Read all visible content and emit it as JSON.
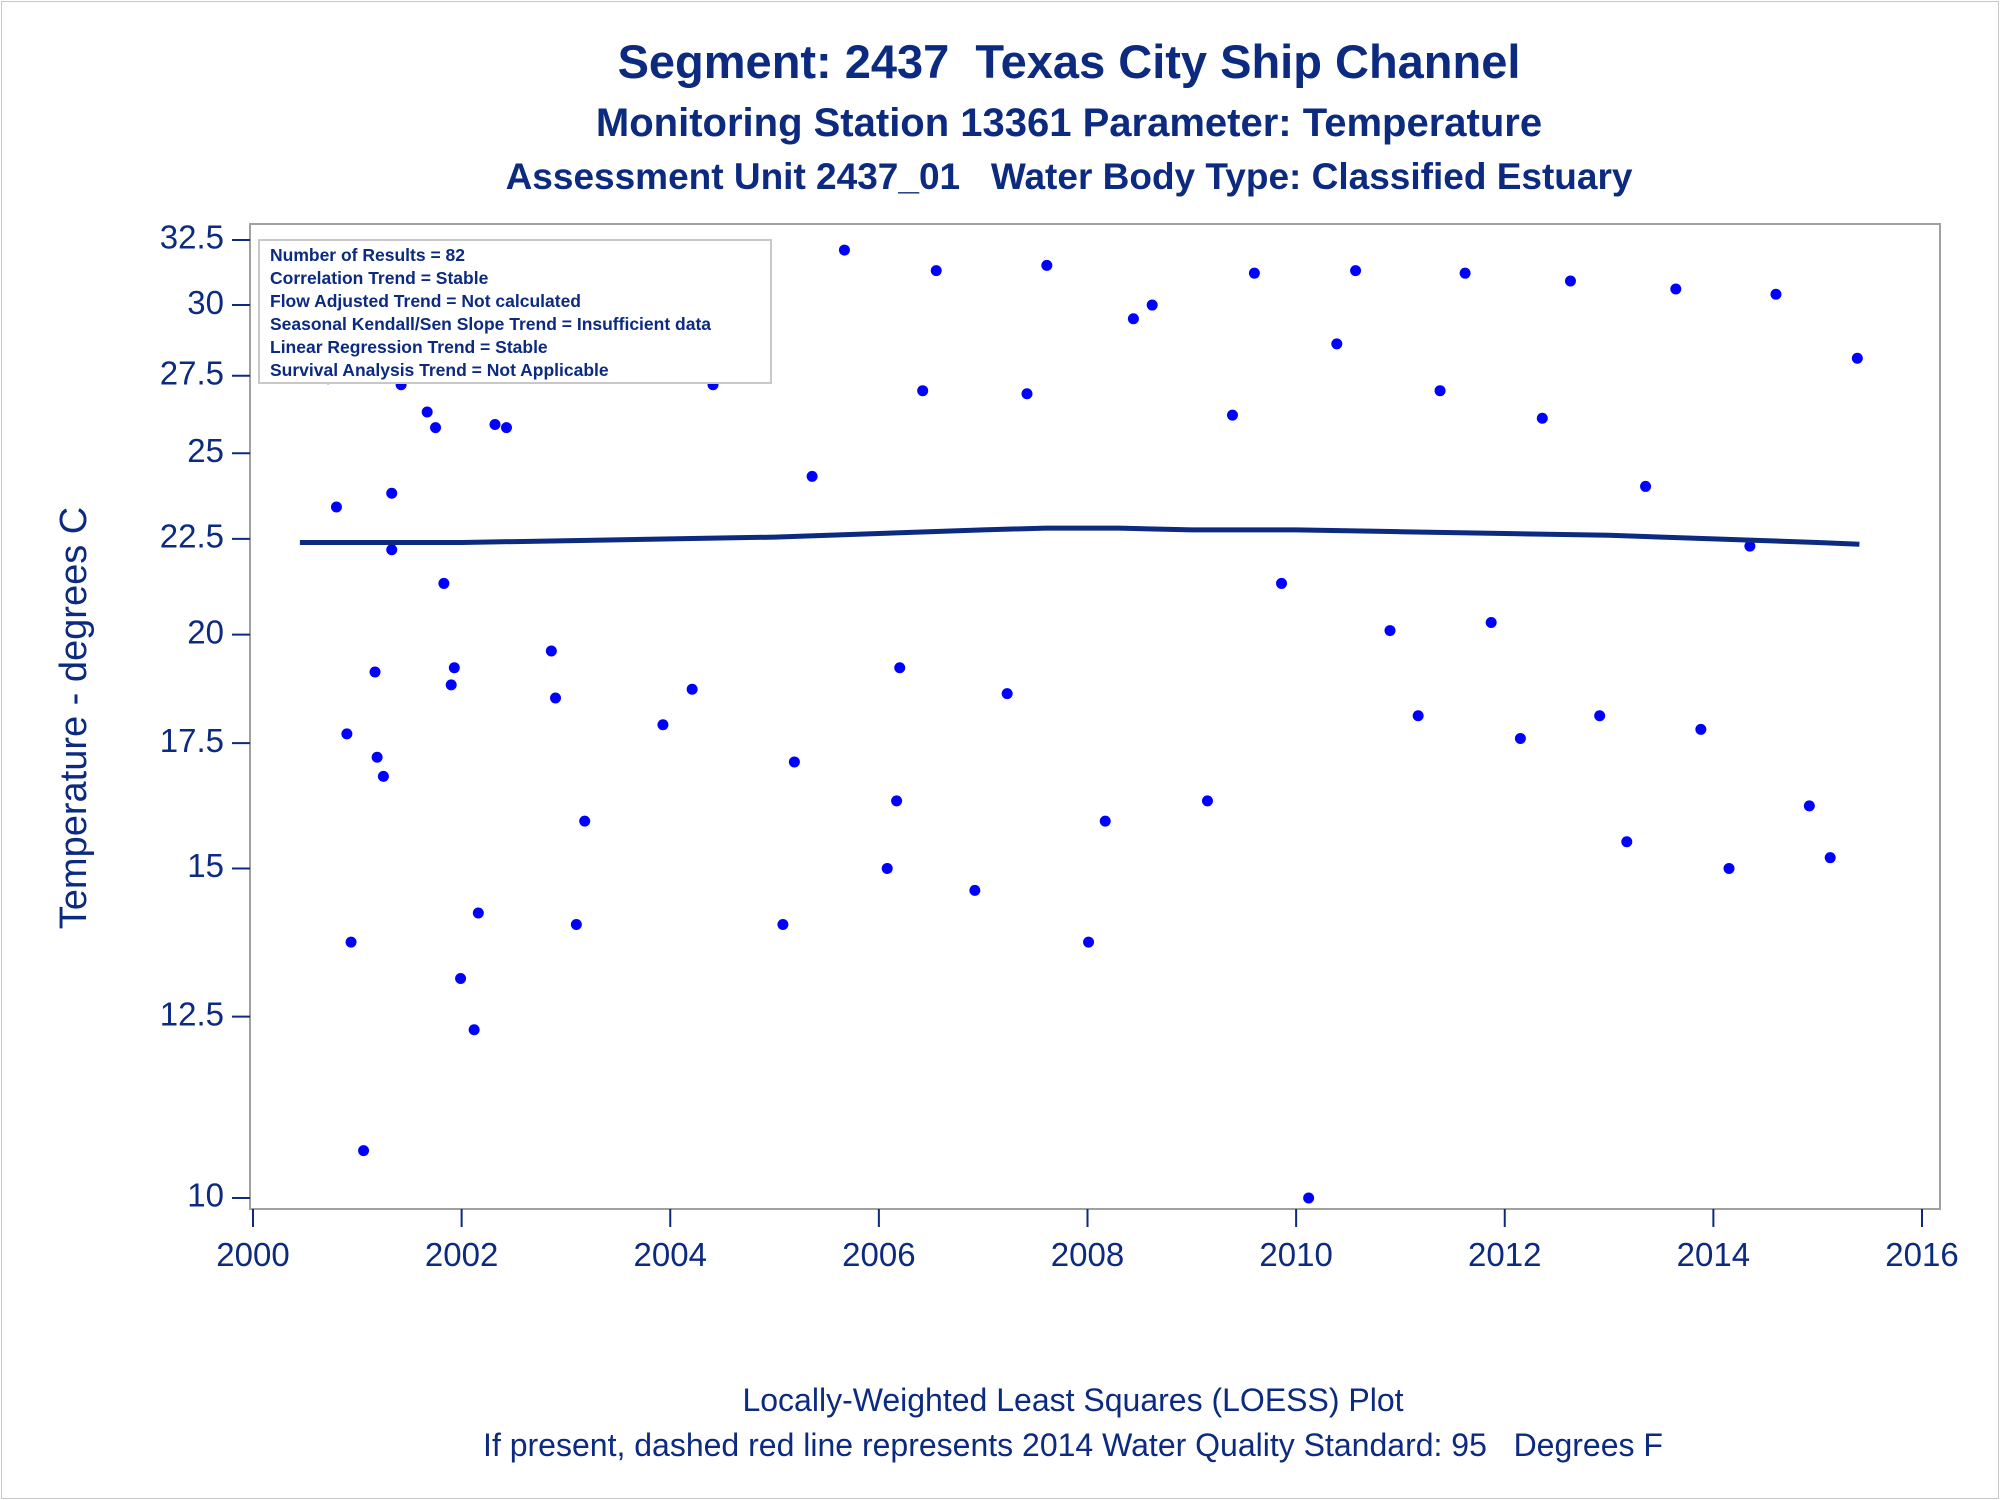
{
  "chart_data": {
    "type": "scatter",
    "title": "Segment: 2437  Texas City Ship Channel",
    "subtitle": "Monitoring Station 13361 Parameter: Temperature",
    "subtitle2": "Assessment Unit 2437_01   Water Body Type: Classified Estuary",
    "ylabel": "Temperature - degrees C",
    "xlabel": "",
    "xlim": [
      2000,
      2016
    ],
    "ylim": [
      10,
      32.5
    ],
    "y_scale": "log",
    "xticks": [
      "2000",
      "2002",
      "2004",
      "2006",
      "2008",
      "2010",
      "2012",
      "2014",
      "2016"
    ],
    "yticks": [
      "10",
      "12.5",
      "15",
      "17.5",
      "20",
      "22.5",
      "25",
      "27.5",
      "30",
      "32.5"
    ],
    "grid": false,
    "stats_box": [
      "Number of Results = 82",
      "Correlation Trend = Stable",
      "Flow Adjusted Trend = Not calculated",
      "Seasonal Kendall/Sen Slope Trend = Insufficient data",
      "Linear Regression Trend = Stable",
      "Survival Analysis Trend = Not Applicable"
    ],
    "footnote1": "Locally-Weighted Least Squares (LOESS) Plot",
    "footnote2": "If present, dashed red line represents 2014 Water Quality Standard: 95   Degrees F",
    "point_color": "#0000ff",
    "line_color": "#0b2a80",
    "points": [
      [
        2000.47,
        28.6
      ],
      [
        2000.53,
        30.3
      ],
      [
        2000.6,
        30.1
      ],
      [
        2000.72,
        27.4
      ],
      [
        2000.8,
        23.4
      ],
      [
        2000.9,
        17.7
      ],
      [
        2000.94,
        13.7
      ],
      [
        2001.06,
        10.6
      ],
      [
        2001.17,
        19.1
      ],
      [
        2001.19,
        17.2
      ],
      [
        2001.25,
        16.8
      ],
      [
        2001.33,
        23.8
      ],
      [
        2001.33,
        22.2
      ],
      [
        2001.42,
        27.2
      ],
      [
        2001.5,
        30.0
      ],
      [
        2001.55,
        30.7
      ],
      [
        2001.61,
        30.7
      ],
      [
        2001.67,
        26.3
      ],
      [
        2001.75,
        25.8
      ],
      [
        2001.83,
        21.3
      ],
      [
        2001.9,
        18.8
      ],
      [
        2001.93,
        19.2
      ],
      [
        2001.99,
        13.1
      ],
      [
        2002.12,
        12.3
      ],
      [
        2002.16,
        14.2
      ],
      [
        2002.32,
        25.9
      ],
      [
        2002.43,
        25.8
      ],
      [
        2002.55,
        29.5
      ],
      [
        2002.65,
        29.7
      ],
      [
        2002.86,
        19.6
      ],
      [
        2002.9,
        18.5
      ],
      [
        2003.1,
        14.0
      ],
      [
        2003.18,
        15.9
      ],
      [
        2003.41,
        27.8
      ],
      [
        2003.56,
        29.7
      ],
      [
        2003.93,
        17.9
      ],
      [
        2004.21,
        18.7
      ],
      [
        2004.41,
        27.2
      ],
      [
        2004.61,
        31.3
      ],
      [
        2005.08,
        14.0
      ],
      [
        2005.19,
        17.1
      ],
      [
        2005.36,
        24.3
      ],
      [
        2005.67,
        32.1
      ],
      [
        2006.08,
        15.0
      ],
      [
        2006.17,
        16.3
      ],
      [
        2006.2,
        19.2
      ],
      [
        2006.42,
        27.0
      ],
      [
        2006.55,
        31.3
      ],
      [
        2006.92,
        14.6
      ],
      [
        2007.23,
        18.6
      ],
      [
        2007.42,
        26.9
      ],
      [
        2007.61,
        31.5
      ],
      [
        2008.01,
        13.7
      ],
      [
        2008.17,
        15.9
      ],
      [
        2008.44,
        29.5
      ],
      [
        2008.62,
        30.0
      ],
      [
        2009.15,
        16.3
      ],
      [
        2009.39,
        26.2
      ],
      [
        2009.6,
        31.2
      ],
      [
        2009.86,
        21.3
      ],
      [
        2010.12,
        10.0
      ],
      [
        2010.39,
        28.6
      ],
      [
        2010.57,
        31.3
      ],
      [
        2010.9,
        20.1
      ],
      [
        2011.17,
        18.1
      ],
      [
        2011.38,
        27.0
      ],
      [
        2011.62,
        31.2
      ],
      [
        2011.87,
        20.3
      ],
      [
        2012.15,
        17.6
      ],
      [
        2012.36,
        26.1
      ],
      [
        2012.63,
        30.9
      ],
      [
        2012.91,
        18.1
      ],
      [
        2013.17,
        15.5
      ],
      [
        2013.35,
        24.0
      ],
      [
        2013.64,
        30.6
      ],
      [
        2013.88,
        17.8
      ],
      [
        2014.15,
        15.0
      ],
      [
        2014.35,
        22.3
      ],
      [
        2014.6,
        30.4
      ],
      [
        2014.92,
        16.2
      ],
      [
        2015.12,
        15.2
      ],
      [
        2015.38,
        28.1
      ]
    ],
    "series": [
      {
        "type": "line",
        "x": [
          2000.45,
          2001,
          2002,
          2003,
          2004,
          2005,
          2006,
          2007,
          2007.6,
          2008.3,
          2009,
          2010,
          2011,
          2012,
          2013,
          2014,
          2015,
          2015.4
        ],
        "y": [
          22.4,
          22.4,
          22.4,
          22.45,
          22.5,
          22.55,
          22.65,
          22.75,
          22.8,
          22.8,
          22.75,
          22.75,
          22.7,
          22.65,
          22.6,
          22.5,
          22.4,
          22.35
        ]
      }
    ]
  }
}
